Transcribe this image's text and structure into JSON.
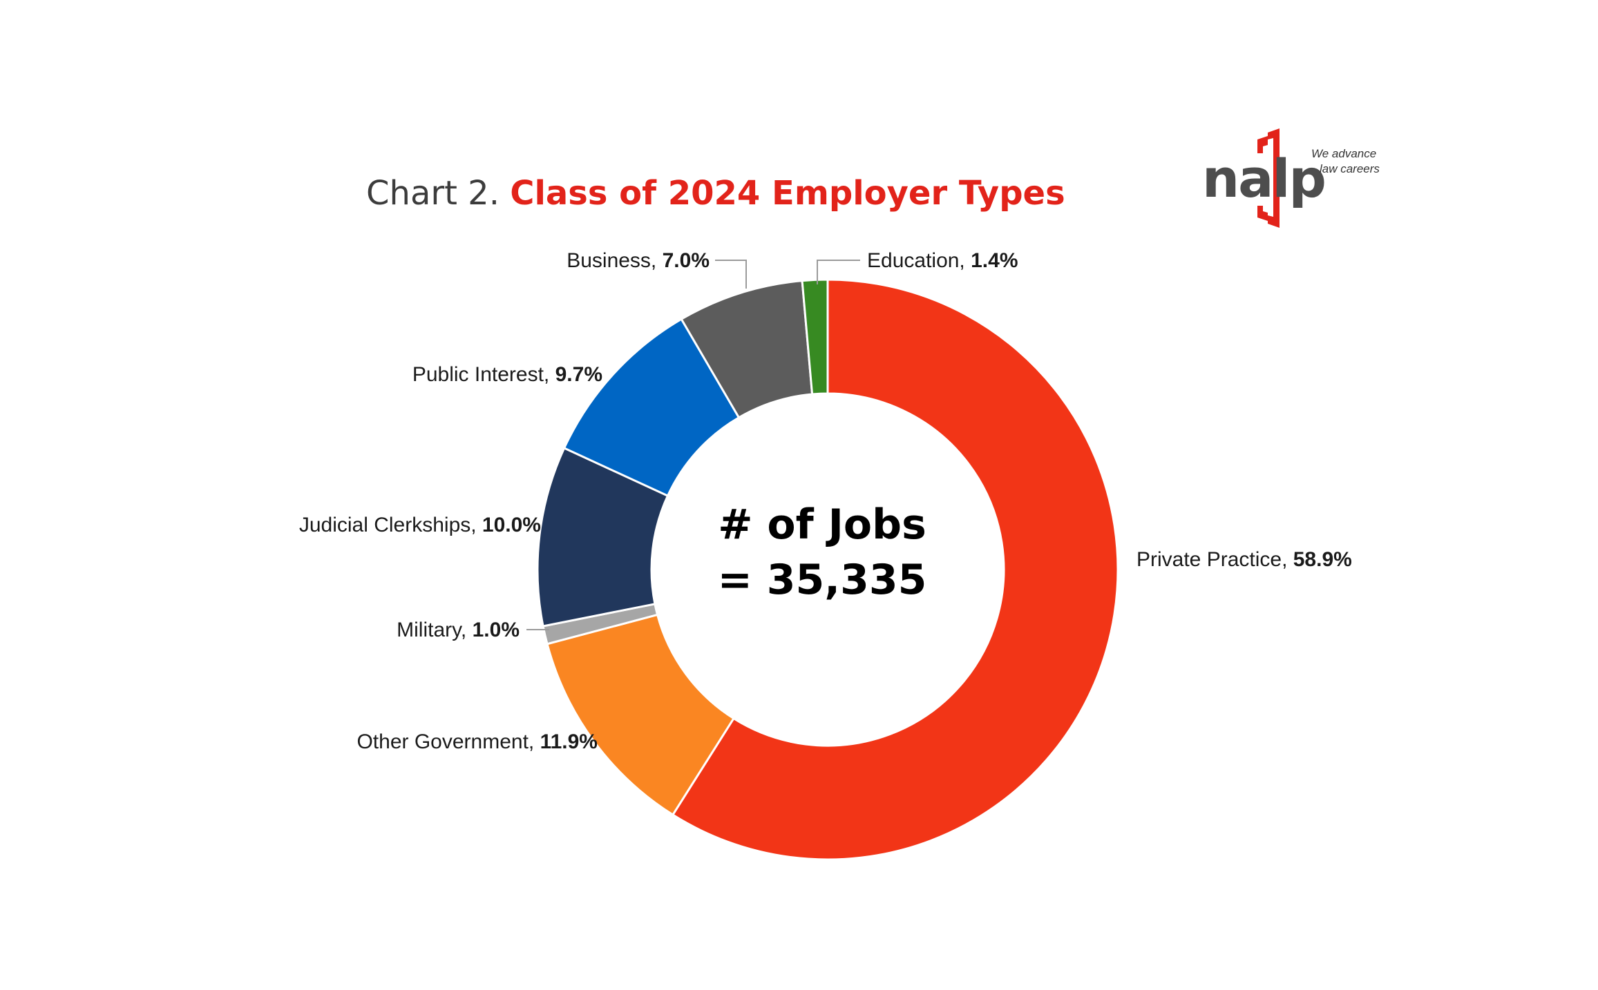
{
  "title": {
    "prefix": "Chart 2.",
    "main": "Class of 2024 Employer Types"
  },
  "logo": {
    "wordmark": "nalp",
    "tagline_line1": "We advance",
    "tagline_line2": "law careers",
    "accent_color": "#e2231a",
    "wordmark_color": "#4d4d4d"
  },
  "center": {
    "line1": "# of Jobs",
    "line2": "= 35,335"
  },
  "chart_data": {
    "type": "pie",
    "donut": true,
    "title": "Chart 2. Class of 2024 Employer Types",
    "total_label": "# of Jobs = 35,335",
    "start": "top, clockwise",
    "slices": [
      {
        "name": "Private Practice",
        "value": 58.9,
        "label": "58.9%",
        "color": "#f23517"
      },
      {
        "name": "Other Government",
        "value": 11.9,
        "label": "11.9%",
        "color": "#fa8622"
      },
      {
        "name": "Military",
        "value": 1.0,
        "label": "1.0%",
        "color": "#a6a6a6"
      },
      {
        "name": "Judicial Clerkships",
        "value": 10.0,
        "label": "10.0%",
        "color": "#21375c"
      },
      {
        "name": "Public Interest",
        "value": 9.7,
        "label": "9.7%",
        "color": "#0066c4"
      },
      {
        "name": "Business",
        "value": 7.0,
        "label": "7.0%",
        "color": "#5c5c5c"
      },
      {
        "name": "Education",
        "value": 1.4,
        "label": "1.4%",
        "color": "#378a22"
      }
    ]
  }
}
